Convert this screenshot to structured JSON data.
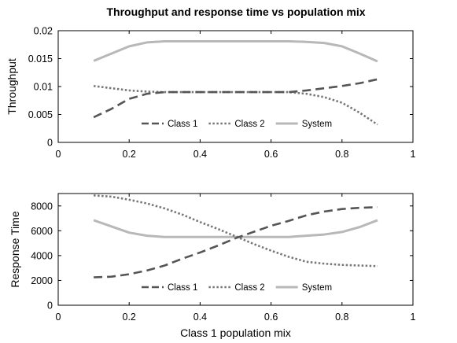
{
  "figure": {
    "title": "Throughput and response time vs population mix"
  },
  "chart_data": [
    {
      "type": "line",
      "title": "Throughput and response time vs population mix",
      "xlabel": "",
      "ylabel": "Throughput",
      "xlim": [
        0,
        1
      ],
      "ylim": [
        0,
        0.02
      ],
      "xticks": [
        "0",
        "0.2",
        "0.4",
        "0.6",
        "0.8",
        "1"
      ],
      "yticks": [
        "0",
        "0.005",
        "0.01",
        "0.015",
        "0.02"
      ],
      "grid": false,
      "legend": "bottom-center",
      "x": [
        0.1,
        0.15,
        0.2,
        0.25,
        0.3,
        0.35,
        0.4,
        0.45,
        0.5,
        0.55,
        0.6,
        0.65,
        0.7,
        0.75,
        0.8,
        0.85,
        0.9
      ],
      "series": [
        {
          "name": "Class 1",
          "style": "dashed",
          "color": "#555555",
          "values": [
            0.0045,
            0.006,
            0.0078,
            0.0087,
            0.009,
            0.009,
            0.009,
            0.009,
            0.009,
            0.009,
            0.009,
            0.009,
            0.0093,
            0.0097,
            0.0101,
            0.0106,
            0.0113
          ]
        },
        {
          "name": "Class 2",
          "style": "dotted",
          "color": "#777777",
          "values": [
            0.0101,
            0.0097,
            0.0093,
            0.0091,
            0.009,
            0.009,
            0.009,
            0.009,
            0.009,
            0.009,
            0.009,
            0.009,
            0.0087,
            0.0081,
            0.0071,
            0.0053,
            0.0032
          ]
        },
        {
          "name": "System",
          "style": "solid",
          "color": "#b8b8b8",
          "values": [
            0.0146,
            0.0159,
            0.0172,
            0.0179,
            0.0181,
            0.0181,
            0.0181,
            0.0181,
            0.0181,
            0.0181,
            0.0181,
            0.0181,
            0.018,
            0.0178,
            0.0172,
            0.0159,
            0.0145
          ]
        }
      ]
    },
    {
      "type": "line",
      "title": "",
      "xlabel": "Class 1 population mix",
      "ylabel": "Response Time",
      "xlim": [
        0,
        1
      ],
      "ylim": [
        0,
        9000
      ],
      "xticks": [
        "0",
        "0.2",
        "0.4",
        "0.6",
        "0.8",
        "1"
      ],
      "yticks": [
        "0",
        "2000",
        "4000",
        "6000",
        "8000"
      ],
      "grid": false,
      "legend": "bottom-center",
      "x": [
        0.1,
        0.15,
        0.2,
        0.25,
        0.3,
        0.35,
        0.4,
        0.45,
        0.5,
        0.55,
        0.6,
        0.65,
        0.7,
        0.75,
        0.8,
        0.85,
        0.9
      ],
      "series": [
        {
          "name": "Class 1",
          "style": "dashed",
          "color": "#555555",
          "values": [
            2250,
            2300,
            2500,
            2800,
            3200,
            3750,
            4250,
            4800,
            5400,
            5900,
            6400,
            6800,
            7250,
            7550,
            7750,
            7850,
            7900
          ]
        },
        {
          "name": "Class 2",
          "style": "dotted",
          "color": "#777777",
          "values": [
            8850,
            8750,
            8500,
            8200,
            7800,
            7300,
            6700,
            6150,
            5550,
            4950,
            4400,
            3900,
            3500,
            3350,
            3250,
            3200,
            3150
          ]
        },
        {
          "name": "System",
          "style": "solid",
          "color": "#b8b8b8",
          "values": [
            6850,
            6350,
            5850,
            5600,
            5500,
            5500,
            5500,
            5500,
            5500,
            5500,
            5500,
            5500,
            5600,
            5700,
            5900,
            6300,
            6850
          ]
        }
      ]
    }
  ]
}
